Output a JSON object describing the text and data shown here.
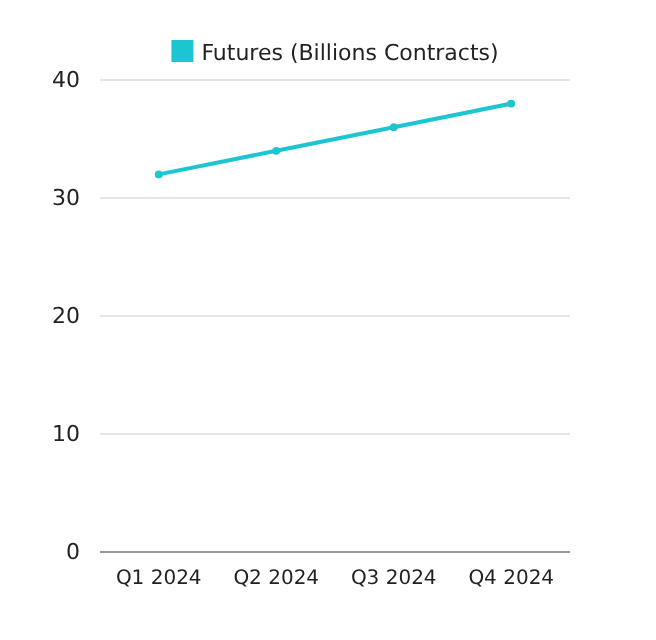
{
  "chart_data": {
    "type": "line",
    "categories": [
      "Q1 2024",
      "Q2 2024",
      "Q3 2024",
      "Q4 2024"
    ],
    "series": [
      {
        "name": "Futures (Billions Contracts)",
        "color": "#1cc6d0",
        "values": [
          32,
          34,
          36,
          38
        ]
      }
    ],
    "ylim": [
      0,
      40
    ],
    "yticks": [
      0,
      10,
      20,
      30,
      40
    ],
    "grid": "y",
    "legend": "top",
    "marker": "circle",
    "line_style": "solid"
  }
}
